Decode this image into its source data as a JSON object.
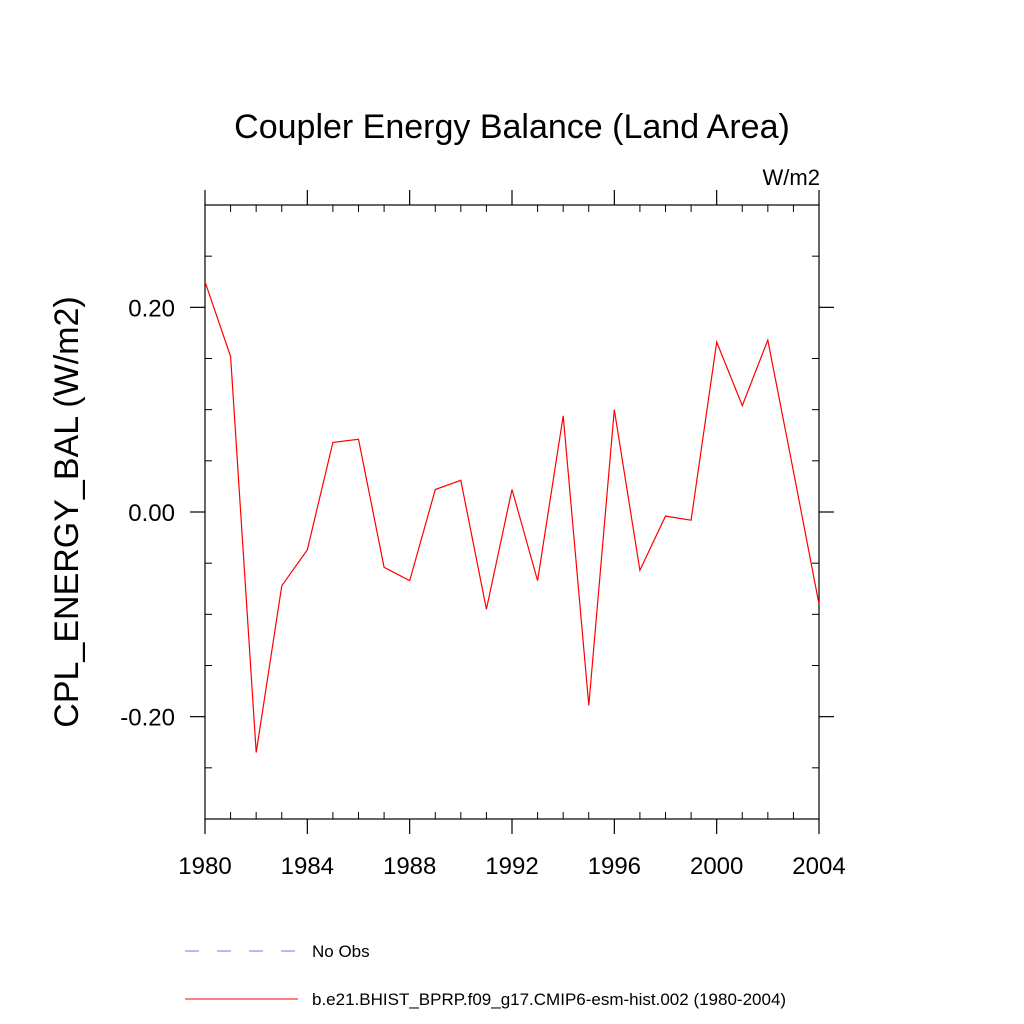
{
  "chart_data": {
    "type": "line",
    "title": "Coupler Energy Balance (Land Area)",
    "units_label": "W/m2",
    "xlabel": "",
    "ylabel": "CPL_ENERGY_BAL  (W/m2)",
    "xlim": [
      1980,
      2004
    ],
    "ylim": [
      -0.3,
      0.3
    ],
    "x_ticks": [
      1980,
      1984,
      1988,
      1992,
      1996,
      2000,
      2004
    ],
    "y_ticks": [
      -0.2,
      0.0,
      0.2
    ],
    "x_tick_labels": [
      "1980",
      "1984",
      "1988",
      "1992",
      "1996",
      "2000",
      "2004"
    ],
    "y_tick_labels": [
      "-0.20",
      "0.00",
      "0.20"
    ],
    "legend_position": "bottom",
    "series": [
      {
        "name": "No Obs",
        "color": "#7a7ad0",
        "style": "dashed",
        "x": [],
        "values": []
      },
      {
        "name": "b.e21.BHIST_BPRP.f09_g17.CMIP6-esm-hist.002 (1980-2004)",
        "color": "#ff0000",
        "style": "solid",
        "x": [
          1980,
          1981,
          1982,
          1983,
          1984,
          1985,
          1986,
          1987,
          1988,
          1989,
          1990,
          1991,
          1992,
          1993,
          1994,
          1995,
          1996,
          1997,
          1998,
          1999,
          2000,
          2001,
          2002,
          2003,
          2004
        ],
        "values": [
          0.225,
          0.152,
          -0.235,
          -0.072,
          -0.037,
          0.068,
          0.071,
          -0.054,
          -0.067,
          0.022,
          0.031,
          -0.095,
          0.022,
          -0.067,
          0.094,
          -0.189,
          0.1,
          -0.057,
          -0.004,
          -0.008,
          0.166,
          0.104,
          0.168,
          0.04,
          -0.09
        ]
      }
    ]
  }
}
